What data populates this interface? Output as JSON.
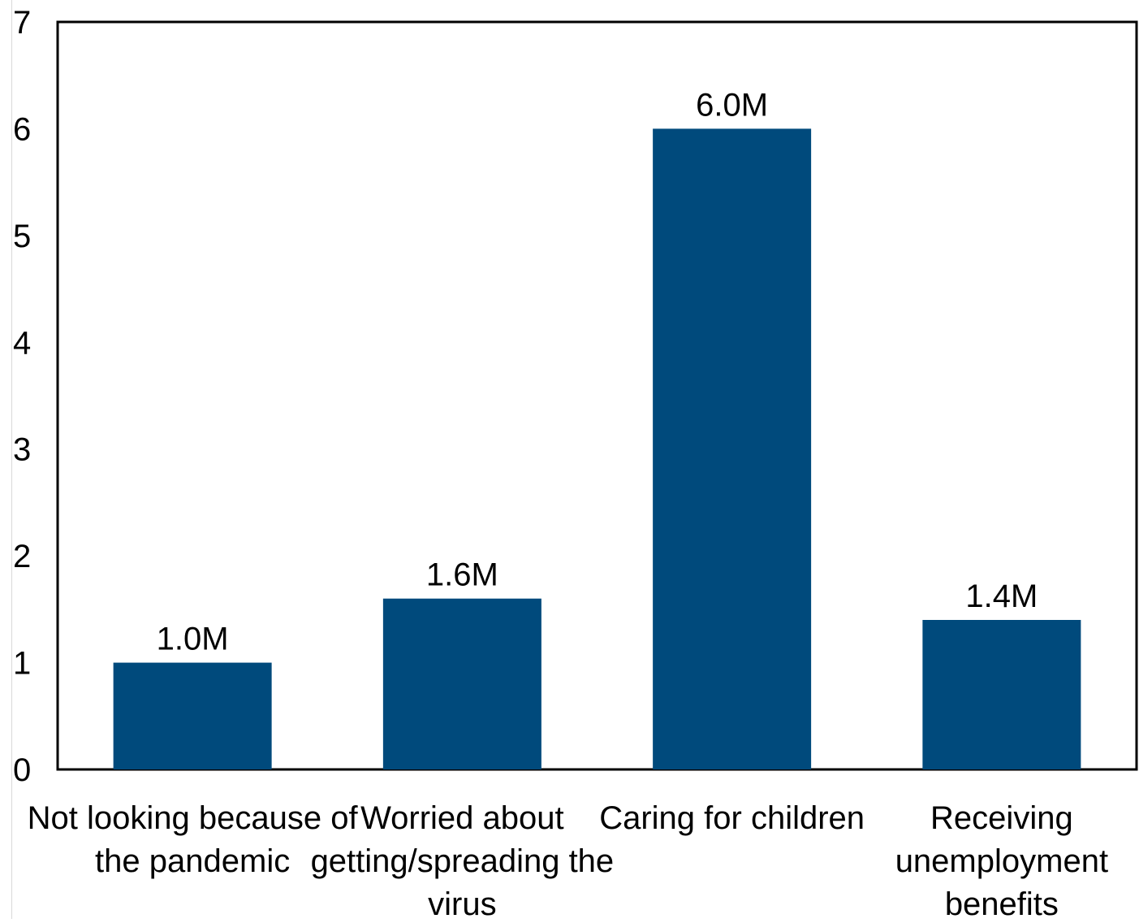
{
  "chart_data": {
    "type": "bar",
    "title": "",
    "xlabel": "",
    "ylabel": "",
    "categories": [
      [
        "Not looking because of",
        "the pandemic"
      ],
      [
        "Worried about",
        "getting/spreading the",
        "virus"
      ],
      [
        "Caring for children"
      ],
      [
        "Receiving",
        "unemployment",
        "benefits"
      ]
    ],
    "values": [
      1.0,
      1.6,
      6.0,
      1.4
    ],
    "data_labels": [
      "1.0M",
      "1.6M",
      "6.0M",
      "1.4M"
    ],
    "ylim": [
      0,
      7
    ],
    "yticks": [
      0,
      1,
      2,
      3,
      4,
      5,
      6,
      7
    ],
    "grid": false,
    "legend": "none",
    "bar_color": "#004a7c",
    "axis_color": "#000000"
  }
}
